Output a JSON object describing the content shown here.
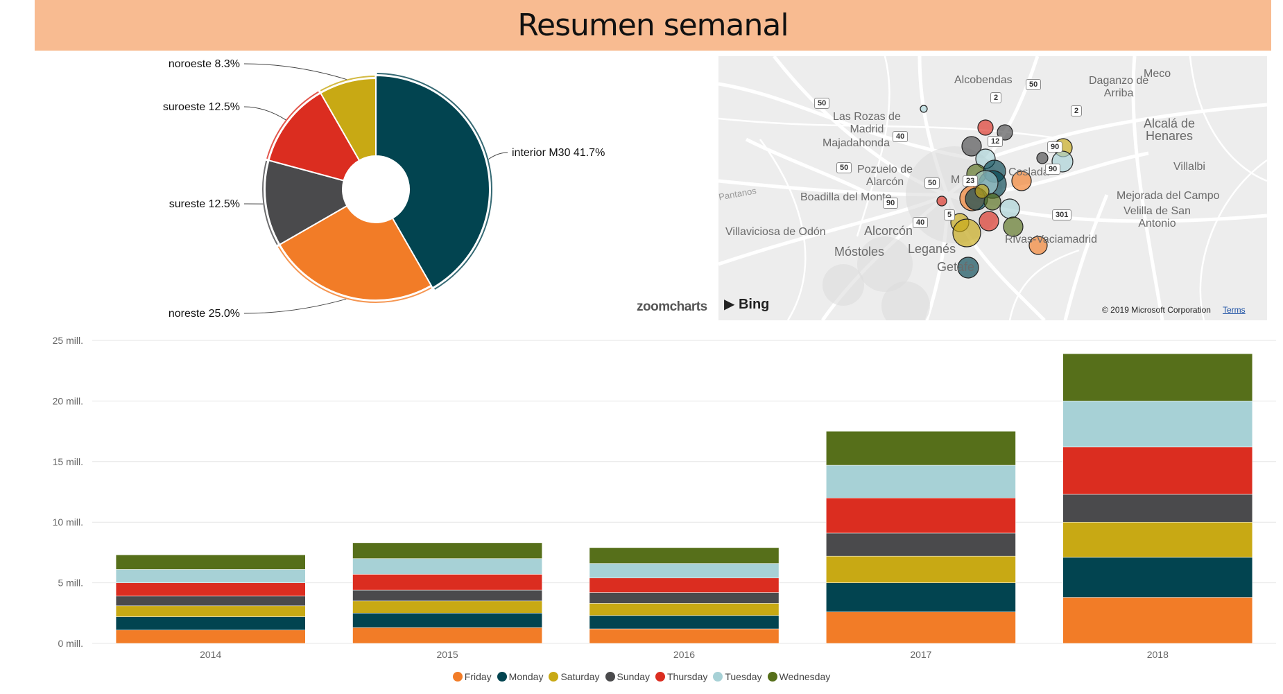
{
  "header": {
    "title": "Resumen semanal"
  },
  "colors": {
    "Friday": "#f27c27",
    "Monday": "#024450",
    "Saturday": "#c8a914",
    "Sunday": "#4a4a4c",
    "Thursday": "#db2d20",
    "Tuesday": "#a7d1d6",
    "Wednesday": "#566f1a"
  },
  "pie": {
    "type": "pie",
    "slices": [
      {
        "name": "interior M30",
        "pct": 41.7,
        "label": "interior M30 41.7%",
        "color": "#024450"
      },
      {
        "name": "noreste",
        "pct": 25.0,
        "label": "noreste 25.0%",
        "color": "#f27c27"
      },
      {
        "name": "sureste",
        "pct": 12.5,
        "label": "sureste 12.5%",
        "color": "#4a4a4c"
      },
      {
        "name": "suroeste",
        "pct": 12.5,
        "label": "suroeste 12.5%",
        "color": "#db2d20"
      },
      {
        "name": "noroeste",
        "pct": 8.3,
        "label": "noroeste 8.3%",
        "color": "#c8a914"
      }
    ]
  },
  "map": {
    "places": [
      "Alcobendas",
      "Daganzo de Arriba",
      "Meco",
      "Las Rozas de Madrid",
      "Majadahonda",
      "Alcalá de Henares",
      "Pozuelo de Alarcón",
      "Coslada",
      "Villalbi",
      "Boadilla del Monte",
      "Mejorada del Campo",
      "Velilla de San Antonio",
      "Villaviciosa de Odón",
      "Alcorcón",
      "Rivas-Vaciamadrid",
      "Móstoles",
      "Leganés",
      "Getafe",
      "Pantanos",
      "M"
    ],
    "roads": [
      "50",
      "2",
      "50",
      "2",
      "40",
      "12",
      "90",
      "50",
      "90",
      "50",
      "23",
      "90",
      "40",
      "5",
      "301"
    ],
    "bing": "Bing",
    "copyright": "© 2019 Microsoft Corporation",
    "terms": "Terms"
  },
  "zoomcharts": "zoomcharts",
  "chart_data": {
    "type": "bar",
    "stacked": true,
    "categories": [
      "2014",
      "2015",
      "2016",
      "2017",
      "2018"
    ],
    "series": [
      {
        "name": "Friday",
        "values": [
          1.1,
          1.3,
          1.2,
          2.6,
          3.8
        ]
      },
      {
        "name": "Monday",
        "values": [
          1.1,
          1.2,
          1.1,
          2.4,
          3.3
        ]
      },
      {
        "name": "Saturday",
        "values": [
          0.9,
          1.0,
          1.0,
          2.2,
          2.9
        ]
      },
      {
        "name": "Sunday",
        "values": [
          0.8,
          0.9,
          0.9,
          1.9,
          2.3
        ]
      },
      {
        "name": "Thursday",
        "values": [
          1.1,
          1.3,
          1.2,
          2.9,
          3.9
        ]
      },
      {
        "name": "Tuesday",
        "values": [
          1.1,
          1.3,
          1.2,
          2.7,
          3.8
        ]
      },
      {
        "name": "Wednesday",
        "values": [
          1.2,
          1.3,
          1.3,
          2.8,
          3.9
        ]
      }
    ],
    "yticks": [
      "0 mill.",
      "5 mill.",
      "10 mill.",
      "15 mill.",
      "20 mill.",
      "25 mill."
    ],
    "ylim": [
      0,
      25
    ],
    "grid": true,
    "legend_position": "bottom"
  }
}
